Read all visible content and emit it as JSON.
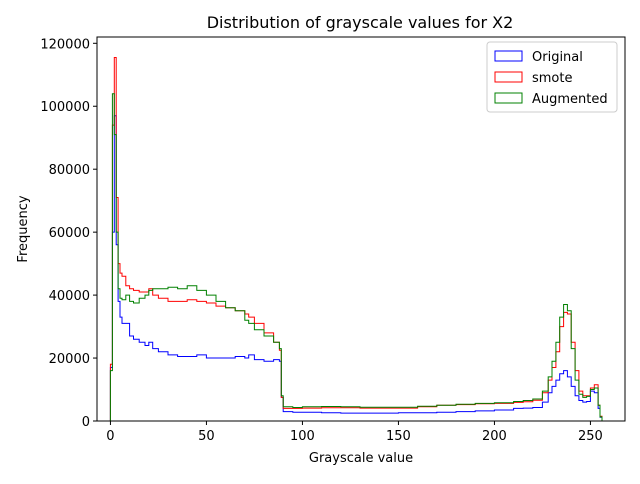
{
  "chart_data": {
    "type": "histogram-step",
    "title": "Distribution of grayscale values for X2",
    "xlabel": "Grayscale value",
    "ylabel": "Frequency",
    "xlim": [
      -7,
      268
    ],
    "ylim": [
      0,
      122000
    ],
    "xticks": [
      0,
      50,
      100,
      150,
      200,
      250
    ],
    "yticks": [
      0,
      20000,
      40000,
      60000,
      80000,
      100000,
      120000
    ],
    "grid": false,
    "legend_position": "top-right",
    "series": [
      {
        "name": "Original",
        "color": "#0000ff",
        "x": [
          0,
          1,
          2,
          3,
          4,
          5,
          6,
          8,
          10,
          12,
          15,
          18,
          20,
          22,
          25,
          30,
          35,
          40,
          45,
          50,
          55,
          60,
          65,
          70,
          72,
          75,
          80,
          85,
          88,
          89,
          90,
          95,
          100,
          110,
          120,
          130,
          140,
          150,
          160,
          170,
          180,
          190,
          200,
          210,
          215,
          220,
          225,
          228,
          230,
          232,
          234,
          236,
          238,
          240,
          242,
          244,
          246,
          248,
          250,
          252,
          254,
          255,
          256
        ],
        "y": [
          17000,
          60000,
          97000,
          56000,
          38000,
          33000,
          31000,
          31000,
          27000,
          26000,
          25000,
          24000,
          25000,
          23000,
          22000,
          21000,
          20500,
          20500,
          21000,
          20000,
          20000,
          20000,
          20500,
          20000,
          21000,
          19500,
          19000,
          19500,
          19000,
          7500,
          3000,
          2800,
          2800,
          2600,
          2500,
          2500,
          2500,
          2600,
          2600,
          2800,
          3000,
          3200,
          3500,
          4000,
          4100,
          4300,
          6000,
          9000,
          11000,
          13000,
          15000,
          16000,
          14000,
          11000,
          8000,
          6500,
          6000,
          6200,
          9500,
          9000,
          4000,
          1200,
          0
        ]
      },
      {
        "name": "smote",
        "color": "#ff0000",
        "x": [
          0,
          1,
          2,
          3,
          4,
          5,
          6,
          8,
          10,
          12,
          15,
          18,
          20,
          22,
          25,
          30,
          35,
          40,
          45,
          50,
          55,
          60,
          65,
          70,
          72,
          75,
          80,
          85,
          88,
          89,
          90,
          95,
          100,
          110,
          120,
          130,
          140,
          150,
          160,
          170,
          180,
          190,
          200,
          210,
          215,
          220,
          225,
          228,
          230,
          232,
          234,
          236,
          238,
          240,
          242,
          244,
          246,
          248,
          250,
          252,
          254,
          255,
          256
        ],
        "y": [
          18000,
          94000,
          115500,
          71000,
          50000,
          47000,
          46000,
          43000,
          42000,
          41500,
          41000,
          41000,
          42000,
          40000,
          39000,
          38000,
          38000,
          38500,
          38000,
          37500,
          36500,
          36000,
          35000,
          34000,
          33000,
          31000,
          28000,
          25000,
          22500,
          7500,
          4000,
          4000,
          4100,
          4200,
          4200,
          4100,
          4100,
          4100,
          4500,
          5000,
          5200,
          5500,
          5600,
          5900,
          6100,
          6600,
          9000,
          13000,
          17000,
          22000,
          30000,
          34500,
          34000,
          25000,
          16000,
          9500,
          8000,
          8000,
          10500,
          11500,
          5000,
          1500,
          0
        ]
      },
      {
        "name": "Augmented",
        "color": "#008000",
        "x": [
          0,
          1,
          2,
          3,
          4,
          5,
          6,
          8,
          10,
          12,
          15,
          18,
          20,
          22,
          25,
          30,
          35,
          40,
          45,
          50,
          55,
          60,
          65,
          70,
          72,
          75,
          80,
          85,
          88,
          89,
          90,
          95,
          100,
          110,
          120,
          130,
          140,
          150,
          160,
          170,
          180,
          190,
          200,
          210,
          215,
          220,
          225,
          228,
          230,
          232,
          234,
          236,
          238,
          240,
          242,
          244,
          246,
          248,
          250,
          252,
          254,
          255,
          256
        ],
        "y": [
          16000,
          104000,
          91000,
          60000,
          42000,
          39000,
          38500,
          40000,
          38000,
          37500,
          39000,
          40000,
          41500,
          42000,
          42000,
          42500,
          42000,
          43000,
          41500,
          40000,
          38000,
          36000,
          35000,
          32000,
          31000,
          29000,
          27000,
          25000,
          23000,
          8000,
          4500,
          4300,
          4500,
          4600,
          4500,
          4400,
          4400,
          4400,
          4700,
          5000,
          5300,
          5600,
          5800,
          6200,
          6500,
          7000,
          9500,
          14000,
          19000,
          25000,
          33000,
          37000,
          35000,
          23000,
          13000,
          8500,
          7500,
          7800,
          10000,
          10500,
          5000,
          1300,
          0
        ]
      }
    ]
  }
}
